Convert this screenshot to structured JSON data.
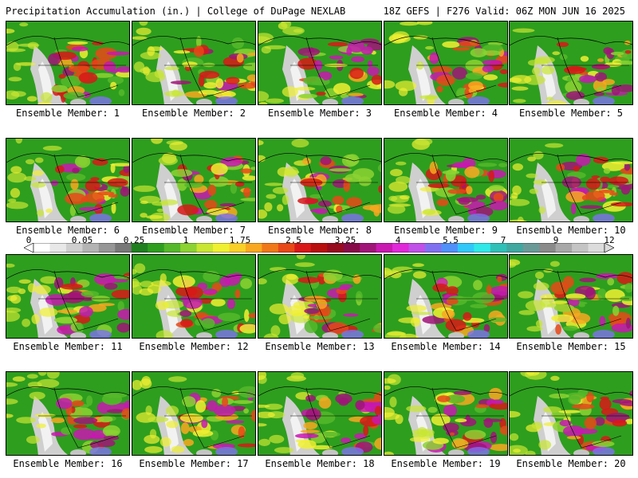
{
  "header": {
    "title": "Precipitation Accumulation (in.) | College of DuPage NEXLAB",
    "valid": "18Z GEFS | F276 Valid: 06Z MON JUN 16 2025"
  },
  "members": [
    {
      "label": "Ensemble Member: 1"
    },
    {
      "label": "Ensemble Member: 2"
    },
    {
      "label": "Ensemble Member: 3"
    },
    {
      "label": "Ensemble Member: 4"
    },
    {
      "label": "Ensemble Member: 5"
    },
    {
      "label": "Ensemble Member: 6"
    },
    {
      "label": "Ensemble Member: 7"
    },
    {
      "label": "Ensemble Member: 8"
    },
    {
      "label": "Ensemble Member: 9"
    },
    {
      "label": "Ensemble Member: 10"
    },
    {
      "label": "Ensemble Member: 11"
    },
    {
      "label": "Ensemble Member: 12"
    },
    {
      "label": "Ensemble Member: 13"
    },
    {
      "label": "Ensemble Member: 14"
    },
    {
      "label": "Ensemble Member: 15"
    },
    {
      "label": "Ensemble Member: 16"
    },
    {
      "label": "Ensemble Member: 17"
    },
    {
      "label": "Ensemble Member: 18"
    },
    {
      "label": "Ensemble Member: 19"
    },
    {
      "label": "Ensemble Member: 20"
    }
  ],
  "colorbar": {
    "labels": [
      "0",
      "0.05",
      "0.25",
      "1",
      "1.75",
      "2.5",
      "3.25",
      "4",
      "5.5",
      "7",
      "9",
      "12"
    ],
    "colors": [
      "#ffffff",
      "#e8e8e8",
      "#cfcfcf",
      "#b4b4b4",
      "#969696",
      "#787878",
      "#1f7f1f",
      "#2e9e1e",
      "#55b82a",
      "#8cd232",
      "#c8e632",
      "#f0f032",
      "#f8d028",
      "#f8a820",
      "#f07818",
      "#e84818",
      "#d81818",
      "#b80e0e",
      "#980a1e",
      "#880a48",
      "#a01478",
      "#c818b0",
      "#e028d8",
      "#c050e8",
      "#8070f0",
      "#5090f8",
      "#30c8f8",
      "#30e8e8",
      "#30c0b8",
      "#40a8a0",
      "#6a9a98",
      "#8a8a8a",
      "#a8a8a8",
      "#c4c4c4",
      "#dcdcdc"
    ]
  }
}
